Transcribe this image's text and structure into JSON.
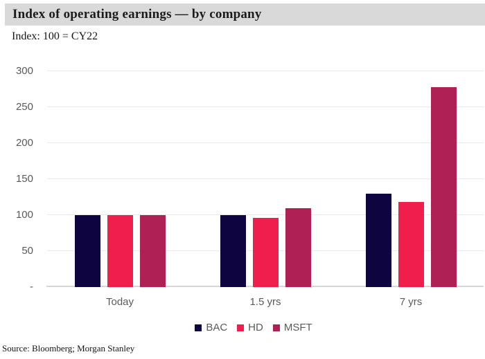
{
  "header": {
    "title": "Index of operating earnings — by company",
    "subtitle": "Index: 100 = CY22"
  },
  "footer": {
    "source": "Source: Bloomberg; Morgan Stanley"
  },
  "colors": {
    "title_bar_bg": "#d9d9d9",
    "grid_line": "#e9e9e9",
    "axis_line": "#d6d6d6",
    "axis_text": "#595959",
    "bac": "#0e0540",
    "hd": "#ef1e4c",
    "msft": "#af2154"
  },
  "chart_data": {
    "type": "bar",
    "title": "Index of operating earnings — by company",
    "subtitle": "Index: 100 = CY22",
    "categories": [
      "Today",
      "1.5 yrs",
      "7 yrs"
    ],
    "series": [
      {
        "name": "BAC",
        "color": "#0e0540",
        "values": [
          100,
          100,
          130
        ]
      },
      {
        "name": "HD",
        "color": "#ef1e4c",
        "values": [
          100,
          96,
          118
        ]
      },
      {
        "name": "MSFT",
        "color": "#af2154",
        "values": [
          100,
          110,
          278
        ]
      }
    ],
    "xlabel": "",
    "ylabel": "",
    "ylim": [
      0,
      300
    ],
    "y_ticks": [
      {
        "label": "300",
        "value": 300
      },
      {
        "label": "250",
        "value": 250
      },
      {
        "label": "200",
        "value": 200
      },
      {
        "label": "150",
        "value": 150
      },
      {
        "label": "100",
        "value": 100
      },
      {
        "label": "50",
        "value": 50
      },
      {
        "label": "-",
        "value": 0
      }
    ],
    "grid": true,
    "legend_position": "bottom",
    "source": "Source: Bloomberg; Morgan Stanley"
  }
}
